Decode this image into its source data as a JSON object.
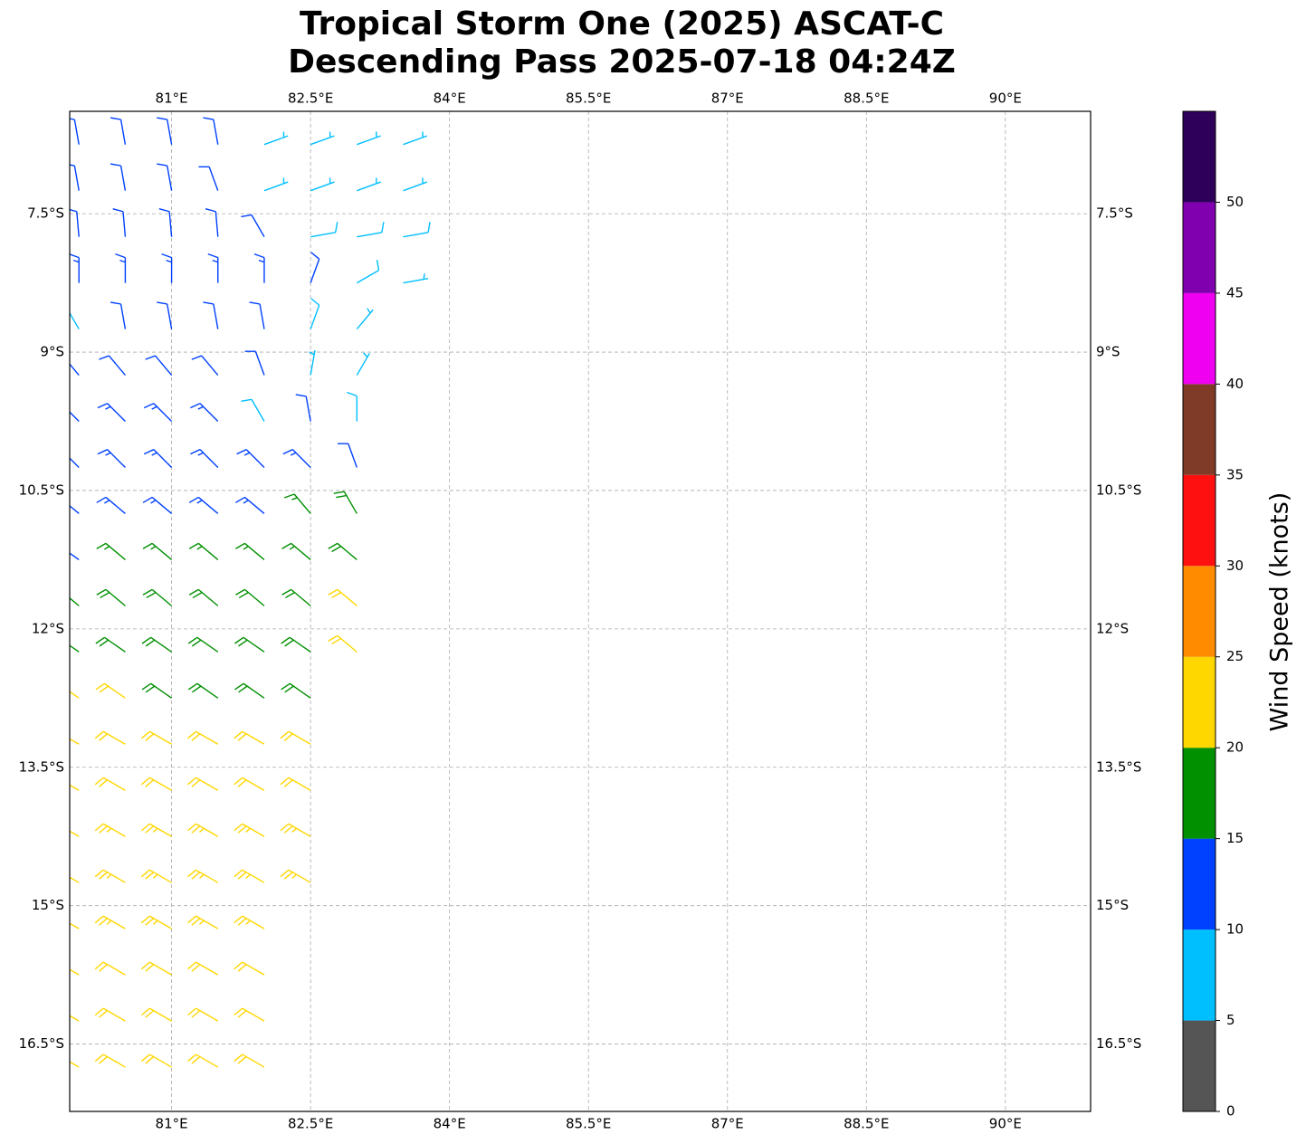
{
  "chart_data": {
    "type": "barb",
    "title": [
      "Tropical Storm One (2025) ASCAT-C",
      "Descending Pass 2025-07-18 04:24Z"
    ],
    "xlim": [
      79.9,
      90.92
    ],
    "ylim": [
      -17.23,
      -6.39
    ],
    "xticks": [
      {
        "value": 81,
        "label": "81°E"
      },
      {
        "value": 82.5,
        "label": "82.5°E"
      },
      {
        "value": 84,
        "label": "84°E"
      },
      {
        "value": 85.5,
        "label": "85.5°E"
      },
      {
        "value": 87,
        "label": "87°E"
      },
      {
        "value": 88.5,
        "label": "88.5°E"
      },
      {
        "value": 90,
        "label": "90°E"
      }
    ],
    "yticks": [
      {
        "value": -7.5,
        "label": "7.5°S"
      },
      {
        "value": -9,
        "label": "9°S"
      },
      {
        "value": -10.5,
        "label": "10.5°S"
      },
      {
        "value": -12,
        "label": "12°S"
      },
      {
        "value": -13.5,
        "label": "13.5°S"
      },
      {
        "value": -15,
        "label": "15°S"
      },
      {
        "value": -16.5,
        "label": "16.5°S"
      }
    ],
    "grid": true,
    "colorbar": {
      "label": "Wind Speed (knots)",
      "bounds": [
        0,
        5,
        10,
        15,
        20,
        25,
        30,
        35,
        40,
        45,
        50,
        55
      ],
      "colors": [
        "#555555",
        "#00bfff",
        "#0040ff",
        "#009000",
        "#ffd700",
        "#ff8c00",
        "#ff1010",
        "#7f3b28",
        "#f000f0",
        "#8000b0",
        "#2e005a"
      ],
      "ticks": [
        0,
        5,
        10,
        15,
        20,
        25,
        30,
        35,
        40,
        45,
        50
      ]
    },
    "barbs": [
      [
        80,
        -6.75,
        12,
        350
      ],
      [
        80.5,
        -6.75,
        12,
        350
      ],
      [
        81,
        -6.75,
        12,
        350
      ],
      [
        81.5,
        -6.75,
        12,
        350
      ],
      [
        82,
        -6.75,
        7,
        70
      ],
      [
        82.5,
        -6.75,
        7,
        70
      ],
      [
        83,
        -6.75,
        7,
        70
      ],
      [
        83.5,
        -6.75,
        7,
        70
      ],
      [
        80,
        -7.25,
        12,
        350
      ],
      [
        80.5,
        -7.25,
        12,
        350
      ],
      [
        81,
        -7.25,
        12,
        350
      ],
      [
        81.5,
        -7.25,
        11,
        340
      ],
      [
        82,
        -7.25,
        7,
        70
      ],
      [
        82.5,
        -7.25,
        7,
        70
      ],
      [
        83,
        -7.25,
        7,
        70
      ],
      [
        83.5,
        -7.25,
        7,
        70
      ],
      [
        80,
        -7.75,
        12,
        355
      ],
      [
        80.5,
        -7.75,
        12,
        355
      ],
      [
        81,
        -7.75,
        12,
        355
      ],
      [
        81.5,
        -7.75,
        12,
        355
      ],
      [
        82,
        -7.75,
        11,
        330
      ],
      [
        82.5,
        -7.75,
        8,
        80
      ],
      [
        83,
        -7.75,
        8,
        80
      ],
      [
        83.5,
        -7.75,
        8,
        80
      ],
      [
        80,
        -8.25,
        13,
        0
      ],
      [
        80.5,
        -8.25,
        13,
        0
      ],
      [
        81,
        -8.25,
        13,
        0
      ],
      [
        81.5,
        -8.25,
        13,
        0
      ],
      [
        82,
        -8.25,
        13,
        0
      ],
      [
        82.5,
        -8.25,
        10,
        20
      ],
      [
        83,
        -8.25,
        8,
        60
      ],
      [
        83.5,
        -8.25,
        7,
        80
      ],
      [
        80,
        -8.75,
        8,
        330
      ],
      [
        80.5,
        -8.75,
        12,
        350
      ],
      [
        81,
        -8.75,
        12,
        350
      ],
      [
        81.5,
        -8.75,
        12,
        350
      ],
      [
        82,
        -8.75,
        12,
        350
      ],
      [
        82.5,
        -8.75,
        9,
        20
      ],
      [
        83,
        -8.75,
        7,
        40
      ],
      [
        80,
        -9.25,
        12,
        320
      ],
      [
        80.5,
        -9.25,
        12,
        320
      ],
      [
        81,
        -9.25,
        12,
        320
      ],
      [
        81.5,
        -9.25,
        12,
        320
      ],
      [
        82,
        -9.25,
        11,
        340
      ],
      [
        82.5,
        -9.25,
        7,
        10
      ],
      [
        83,
        -9.25,
        6,
        30
      ],
      [
        80,
        -9.75,
        13,
        315
      ],
      [
        80.5,
        -9.75,
        13,
        315
      ],
      [
        81,
        -9.75,
        13,
        315
      ],
      [
        81.5,
        -9.75,
        13,
        315
      ],
      [
        82,
        -9.75,
        8,
        330
      ],
      [
        82.5,
        -9.75,
        10,
        350
      ],
      [
        83,
        -9.75,
        8,
        0
      ],
      [
        80,
        -10.25,
        13,
        315
      ],
      [
        80.5,
        -10.25,
        13,
        315
      ],
      [
        81,
        -10.25,
        13,
        315
      ],
      [
        81.5,
        -10.25,
        13,
        315
      ],
      [
        82,
        -10.25,
        13,
        315
      ],
      [
        82.5,
        -10.25,
        13,
        315
      ],
      [
        83,
        -10.25,
        11,
        340
      ],
      [
        80,
        -10.75,
        14,
        310
      ],
      [
        80.5,
        -10.75,
        14,
        310
      ],
      [
        81,
        -10.75,
        14,
        310
      ],
      [
        81.5,
        -10.75,
        14,
        310
      ],
      [
        82,
        -10.75,
        14,
        310
      ],
      [
        82.5,
        -10.75,
        17,
        320
      ],
      [
        83,
        -10.75,
        18,
        330
      ],
      [
        80,
        -11.25,
        14,
        305
      ],
      [
        80.5,
        -11.25,
        17,
        310
      ],
      [
        81,
        -11.25,
        17,
        310
      ],
      [
        81.5,
        -11.25,
        17,
        310
      ],
      [
        82,
        -11.25,
        17,
        310
      ],
      [
        82.5,
        -11.25,
        17,
        310
      ],
      [
        83,
        -11.25,
        18,
        310
      ],
      [
        80,
        -11.75,
        18,
        310
      ],
      [
        80.5,
        -11.75,
        18,
        310
      ],
      [
        81,
        -11.75,
        18,
        310
      ],
      [
        81.5,
        -11.75,
        18,
        310
      ],
      [
        82,
        -11.75,
        18,
        310
      ],
      [
        82.5,
        -11.75,
        18,
        310
      ],
      [
        83,
        -11.75,
        21,
        310
      ],
      [
        80,
        -12.25,
        19,
        305
      ],
      [
        80.5,
        -12.25,
        19,
        305
      ],
      [
        81,
        -12.25,
        19,
        305
      ],
      [
        81.5,
        -12.25,
        19,
        305
      ],
      [
        82,
        -12.25,
        19,
        305
      ],
      [
        82.5,
        -12.25,
        19,
        305
      ],
      [
        83,
        -12.25,
        21,
        310
      ],
      [
        80,
        -12.75,
        22,
        305
      ],
      [
        80.5,
        -12.75,
        22,
        305
      ],
      [
        81,
        -12.75,
        19,
        305
      ],
      [
        81.5,
        -12.75,
        19,
        305
      ],
      [
        82,
        -12.75,
        19,
        305
      ],
      [
        82.5,
        -12.75,
        19,
        305
      ],
      [
        80,
        -13.25,
        22,
        300
      ],
      [
        80.5,
        -13.25,
        22,
        300
      ],
      [
        81,
        -13.25,
        22,
        300
      ],
      [
        81.5,
        -13.25,
        22,
        300
      ],
      [
        82,
        -13.25,
        22,
        300
      ],
      [
        82.5,
        -13.25,
        22,
        300
      ],
      [
        80,
        -13.75,
        22,
        300
      ],
      [
        80.5,
        -13.75,
        22,
        300
      ],
      [
        81,
        -13.75,
        22,
        300
      ],
      [
        81.5,
        -13.75,
        22,
        300
      ],
      [
        82,
        -13.75,
        22,
        300
      ],
      [
        82.5,
        -13.75,
        22,
        300
      ],
      [
        80,
        -14.25,
        23,
        300
      ],
      [
        80.5,
        -14.25,
        23,
        300
      ],
      [
        81,
        -14.25,
        23,
        300
      ],
      [
        81.5,
        -14.25,
        23,
        300
      ],
      [
        82,
        -14.25,
        23,
        300
      ],
      [
        82.5,
        -14.25,
        23,
        300
      ],
      [
        80,
        -14.75,
        23,
        300
      ],
      [
        80.5,
        -14.75,
        23,
        300
      ],
      [
        81,
        -14.75,
        23,
        300
      ],
      [
        81.5,
        -14.75,
        23,
        300
      ],
      [
        82,
        -14.75,
        23,
        300
      ],
      [
        82.5,
        -14.75,
        23,
        300
      ],
      [
        80,
        -15.25,
        23,
        300
      ],
      [
        80.5,
        -15.25,
        23,
        300
      ],
      [
        81,
        -15.25,
        23,
        300
      ],
      [
        81.5,
        -15.25,
        23,
        300
      ],
      [
        82,
        -15.25,
        23,
        300
      ],
      [
        80,
        -15.75,
        22,
        300
      ],
      [
        80.5,
        -15.75,
        22,
        300
      ],
      [
        81,
        -15.75,
        22,
        300
      ],
      [
        81.5,
        -15.75,
        22,
        300
      ],
      [
        82,
        -15.75,
        22,
        300
      ],
      [
        80,
        -16.25,
        22,
        300
      ],
      [
        80.5,
        -16.25,
        22,
        300
      ],
      [
        81,
        -16.25,
        22,
        300
      ],
      [
        81.5,
        -16.25,
        22,
        300
      ],
      [
        82,
        -16.25,
        22,
        300
      ],
      [
        80,
        -16.75,
        22,
        300
      ],
      [
        80.5,
        -16.75,
        22,
        300
      ],
      [
        81,
        -16.75,
        22,
        300
      ],
      [
        81.5,
        -16.75,
        22,
        300
      ],
      [
        82,
        -16.75,
        22,
        300
      ]
    ]
  }
}
